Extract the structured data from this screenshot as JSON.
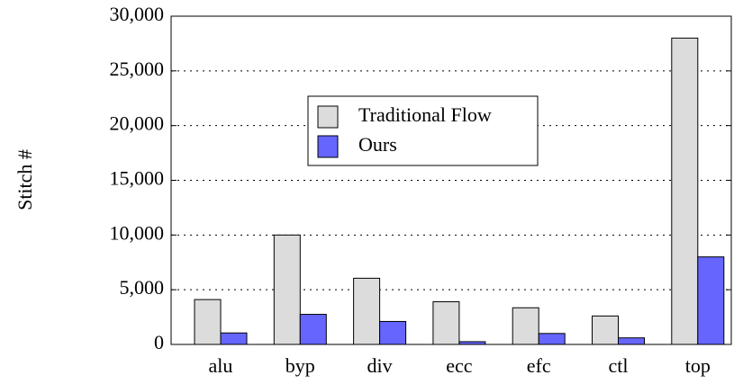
{
  "chart_data": {
    "type": "bar",
    "ylabel": "Stitch #",
    "categories": [
      "alu",
      "byp",
      "div",
      "ecc",
      "efc",
      "ctl",
      "top"
    ],
    "series": [
      {
        "name": "Traditional Flow",
        "color": "#dcdcdc",
        "values": [
          4100,
          10000,
          6050,
          3900,
          3350,
          2600,
          28000
        ]
      },
      {
        "name": "Ours",
        "color": "#6666ff",
        "values": [
          1050,
          2750,
          2100,
          250,
          1000,
          600,
          8000
        ]
      }
    ],
    "ylim": [
      0,
      30000
    ],
    "yticks": [
      {
        "value": 0,
        "label": "0"
      },
      {
        "value": 5000,
        "label": "5,000"
      },
      {
        "value": 10000,
        "label": "10,000"
      },
      {
        "value": 15000,
        "label": "15,000"
      },
      {
        "value": 20000,
        "label": "20,000"
      },
      {
        "value": 25000,
        "label": "25,000"
      },
      {
        "value": 30000,
        "label": "30,000"
      }
    ],
    "grid": true
  }
}
